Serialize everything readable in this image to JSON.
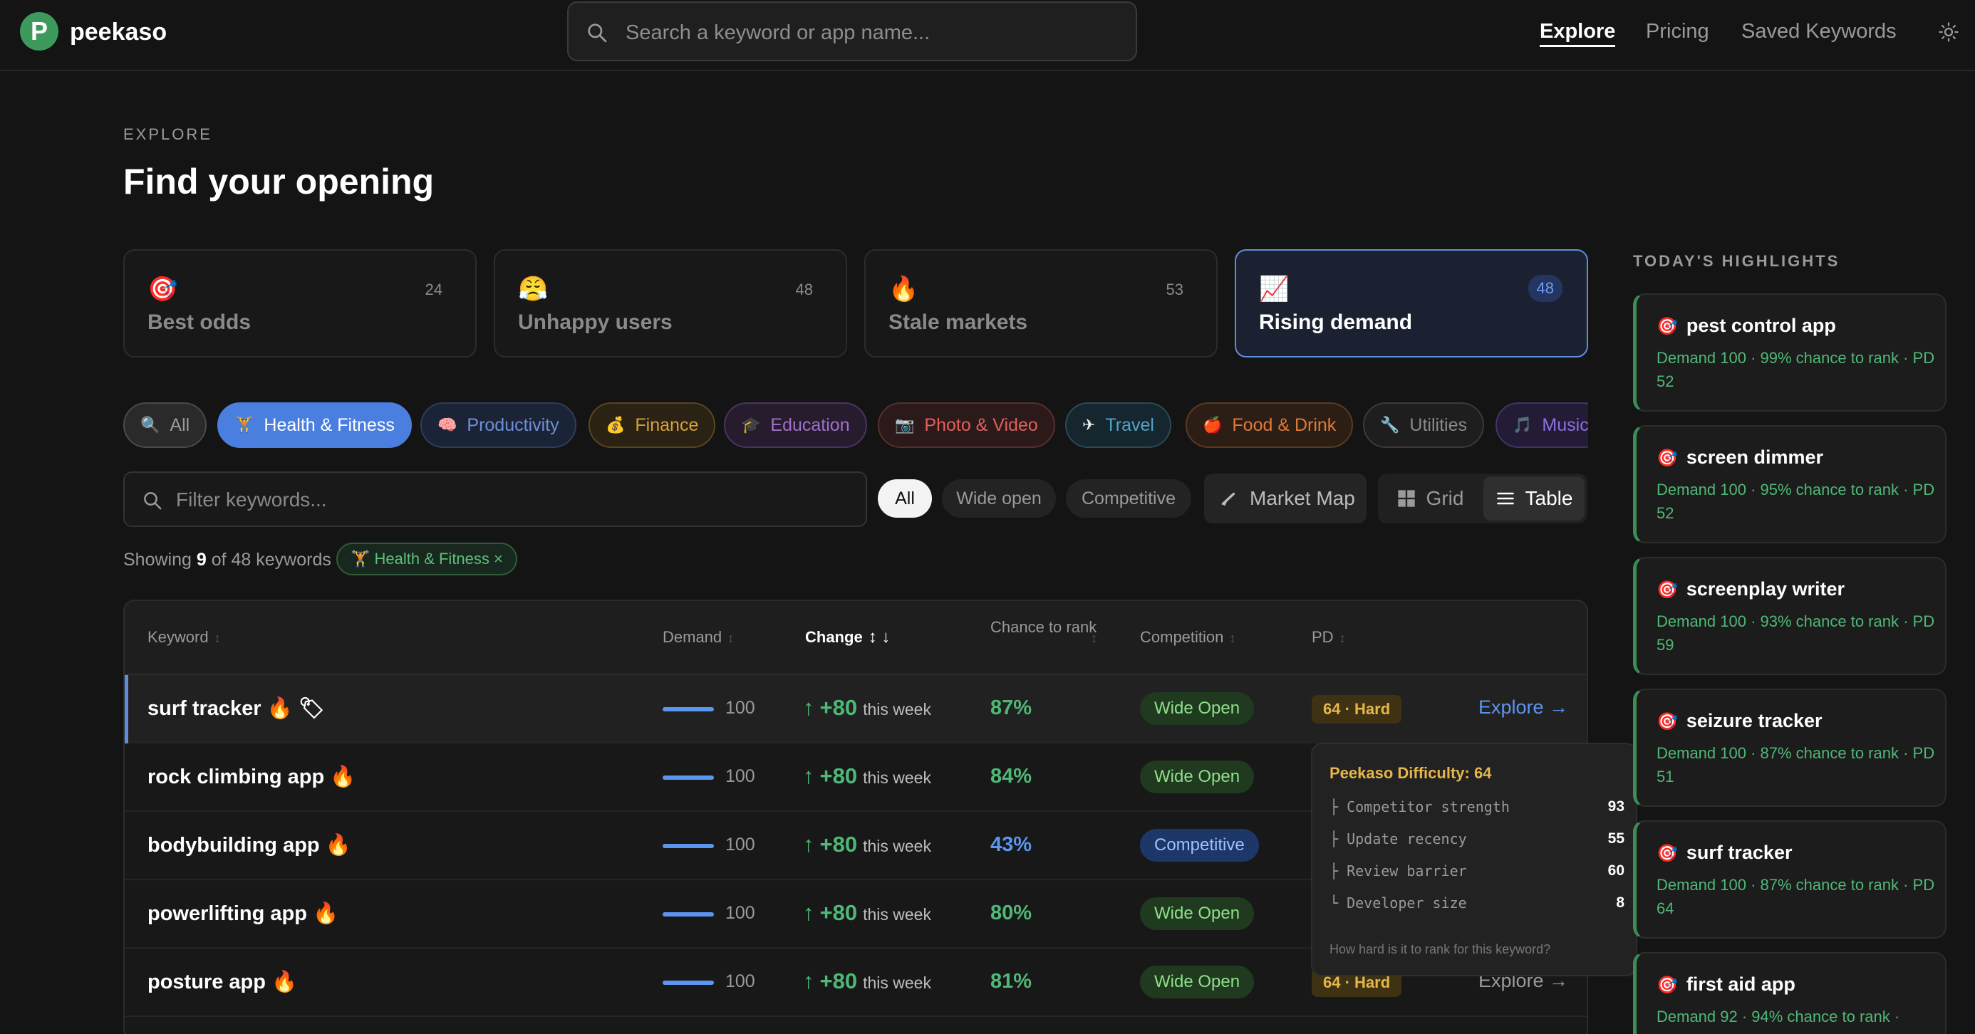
{
  "brand": {
    "logo_letter": "P",
    "name": "peekaso"
  },
  "search": {
    "placeholder": "Search a keyword or app name..."
  },
  "nav": {
    "explore": "Explore",
    "pricing": "Pricing",
    "saved": "Saved Keywords"
  },
  "heading": {
    "eyebrow": "EXPLORE",
    "title": "Find your opening"
  },
  "presets": [
    {
      "emoji": "🎯",
      "label": "Best odds",
      "count": "24"
    },
    {
      "emoji": "😤",
      "label": "Unhappy users",
      "count": "48"
    },
    {
      "emoji": "🔥",
      "label": "Stale markets",
      "count": "53"
    },
    {
      "emoji": "📈",
      "label": "Rising demand",
      "count": "48",
      "active": true
    }
  ],
  "categories": [
    {
      "emoji": "🔍",
      "label": "All",
      "color": "#9a9a9a"
    },
    {
      "emoji": "🏋",
      "label": "Health & Fitness",
      "color": "#ffffff",
      "active": true
    },
    {
      "emoji": "🧠",
      "label": "Productivity",
      "color": "#6f8fd8"
    },
    {
      "emoji": "💰",
      "label": "Finance",
      "color": "#d9a03c"
    },
    {
      "emoji": "🎓",
      "label": "Education",
      "color": "#a06ec8"
    },
    {
      "emoji": "📷",
      "label": "Photo & Video",
      "color": "#e0605a"
    },
    {
      "emoji": "✈",
      "label": "Travel",
      "color": "#4fa3c9"
    },
    {
      "emoji": "🍎",
      "label": "Food & Drink",
      "color": "#e07a3c"
    },
    {
      "emoji": "🔧",
      "label": "Utilities",
      "color": "#8a8a8a"
    },
    {
      "emoji": "🎵",
      "label": "Music",
      "color": "#8c6fe0"
    }
  ],
  "filter": {
    "placeholder": "Filter keywords...",
    "segments": [
      "All",
      "Wide open",
      "Competitive"
    ],
    "market_map": "Market Map",
    "view_grid": "Grid",
    "view_table": "Table"
  },
  "showing": {
    "prefix": "Showing",
    "shown": "9",
    "middle": "of 48 keywords",
    "chip": "🏋 Health & Fitness ×"
  },
  "table": {
    "headers": {
      "keyword": "Keyword",
      "demand": "Demand",
      "change": "Change",
      "chance": "Chance to rank",
      "competition": "Competition",
      "pd": "PD"
    },
    "rows": [
      {
        "keyword": "surf tracker 🔥 🏷",
        "demand": 100,
        "demand_label": "100",
        "change": "+80",
        "change_unit": "this week",
        "chance": "87%",
        "chance_color": "#4fb876",
        "competition": "Wide Open",
        "comp_type": "wide",
        "pd": "64 · Hard",
        "explore": "Explore →"
      },
      {
        "keyword": "rock climbing app 🔥",
        "demand": 100,
        "demand_label": "100",
        "change": "+80",
        "change_unit": "this week",
        "chance": "84%",
        "chance_color": "#4fb876",
        "competition": "Wide Open",
        "comp_type": "wide"
      },
      {
        "keyword": "bodybuilding app 🔥",
        "demand": 100,
        "demand_label": "100",
        "change": "+80",
        "change_unit": "this week",
        "chance": "43%",
        "chance_color": "#5c95f0",
        "competition": "Competitive",
        "comp_type": "competitive"
      },
      {
        "keyword": "powerlifting app 🔥",
        "demand": 100,
        "demand_label": "100",
        "change": "+80",
        "change_unit": "this week",
        "chance": "80%",
        "chance_color": "#4fb876",
        "competition": "Wide Open",
        "comp_type": "wide"
      },
      {
        "keyword": "posture app 🔥",
        "demand": 100,
        "demand_label": "100",
        "change": "+80",
        "change_unit": "this week",
        "chance": "81%",
        "chance_color": "#4fb876",
        "competition": "Wide Open",
        "comp_type": "wide",
        "pd": "64 · Hard",
        "explore": "Explore →"
      }
    ]
  },
  "tooltip": {
    "title": "Peekaso Difficulty: 64",
    "items": [
      {
        "label": "├ Competitor strength",
        "value": "93"
      },
      {
        "label": "├ Update recency",
        "value": "55"
      },
      {
        "label": "├ Review barrier",
        "value": "60"
      },
      {
        "label": "└ Developer size",
        "value": "8"
      }
    ],
    "footer": "How hard is it to rank for this keyword?"
  },
  "highlights": {
    "title": "TODAY'S HIGHLIGHTS",
    "items": [
      {
        "icon": "🎯",
        "keyword": "pest control app",
        "detail": "Demand 100 · 99% chance to rank · PD 52"
      },
      {
        "icon": "🎯",
        "keyword": "screen dimmer",
        "detail": "Demand 100 · 95% chance to rank · PD 52"
      },
      {
        "icon": "🎯",
        "keyword": "screenplay writer",
        "detail": "Demand 100 · 93% chance to rank · PD 59"
      },
      {
        "icon": "🎯",
        "keyword": "seizure tracker",
        "detail": "Demand 100 · 87% chance to rank · PD 51"
      },
      {
        "icon": "🎯",
        "keyword": "surf tracker",
        "detail": "Demand 100 · 87% chance to rank · PD 64"
      },
      {
        "icon": "🎯",
        "keyword": "first aid app",
        "detail": "Demand 92 · 94% chance to rank ·"
      }
    ]
  },
  "colors": {
    "accent_blue": "#5c95f0",
    "green": "#4fb876",
    "amber": "#e7b64a",
    "bg": "#141414"
  }
}
